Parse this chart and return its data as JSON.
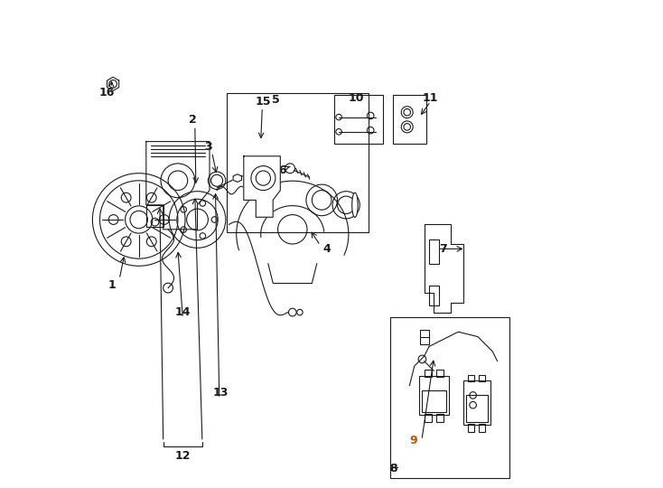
{
  "bg_color": "#ffffff",
  "line_color": "#1a1a1a",
  "label_color_9": "#c85000"
}
